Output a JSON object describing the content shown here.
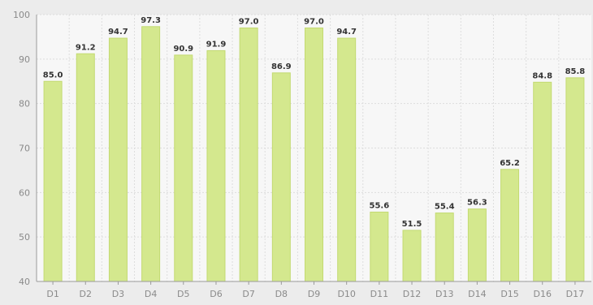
{
  "chart_data": {
    "type": "bar",
    "categories": [
      "D1",
      "D2",
      "D3",
      "D4",
      "D5",
      "D6",
      "D7",
      "D8",
      "D9",
      "D10",
      "D11",
      "D12",
      "D13",
      "D14",
      "D15",
      "D16",
      "D17"
    ],
    "values": [
      85.0,
      91.2,
      94.7,
      97.3,
      90.9,
      91.9,
      97.0,
      86.9,
      97.0,
      94.7,
      55.6,
      51.5,
      55.4,
      56.3,
      65.2,
      84.8,
      85.8
    ],
    "value_labels": [
      "85.0",
      "91.2",
      "94.7",
      "97.3",
      "90.9",
      "91.9",
      "97.0",
      "86.9",
      "97.0",
      "94.7",
      "55.6",
      "51.5",
      "55.4",
      "56.3",
      "65.2",
      "84.8",
      "85.8"
    ],
    "title": "",
    "xlabel": "",
    "ylabel": "",
    "ylim": [
      40,
      100
    ],
    "yticks": [
      40,
      50,
      60,
      70,
      80,
      90,
      100
    ],
    "grid": true,
    "legend": "none",
    "colors": {
      "bar_fill": "#d4e88e",
      "bar_edge": "#c3da72",
      "plot_background": "#f7f7f7",
      "page_background": "#ececec",
      "grid": "#dddddd",
      "axis": "#9a9a9a",
      "tick_text": "#8a8a8a",
      "value_text": "#333333"
    }
  }
}
